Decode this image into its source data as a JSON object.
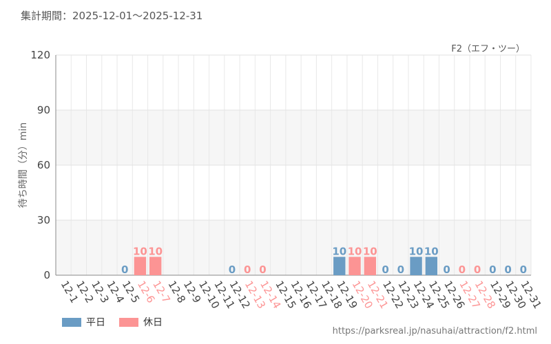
{
  "header": {
    "period": "集計期間：2025-12-01～2025-12-31"
  },
  "source_url": "https://parksreal.jp/nasuhai/attraction/f2.html",
  "colors": {
    "weekday": "#6a9cc4",
    "holiday": "#fc9494"
  },
  "chart_data": {
    "type": "bar",
    "title": "F2（エフ・ツー）",
    "xlabel": "",
    "ylabel": "待ち時間（分）min",
    "ylim": [
      0,
      120
    ],
    "yticks": [
      0,
      30,
      60,
      90,
      120
    ],
    "categories": [
      "12-1",
      "12-2",
      "12-3",
      "12-4",
      "12-5",
      "12-6",
      "12-7",
      "12-8",
      "12-9",
      "12-10",
      "12-11",
      "12-12",
      "12-13",
      "12-14",
      "12-15",
      "12-16",
      "12-17",
      "12-18",
      "12-19",
      "12-20",
      "12-21",
      "12-22",
      "12-23",
      "12-24",
      "12-25",
      "12-26",
      "12-27",
      "12-28",
      "12-29",
      "12-30",
      "12-31"
    ],
    "values": [
      null,
      null,
      null,
      null,
      0,
      10,
      10,
      null,
      null,
      null,
      null,
      0,
      0,
      0,
      null,
      null,
      null,
      null,
      10,
      10,
      10,
      0,
      0,
      10,
      10,
      0,
      0,
      0,
      0,
      0,
      0
    ],
    "day_type": [
      "weekday",
      "weekday",
      "weekday",
      "weekday",
      "weekday",
      "holiday",
      "holiday",
      "weekday",
      "weekday",
      "weekday",
      "weekday",
      "weekday",
      "holiday",
      "holiday",
      "weekday",
      "weekday",
      "weekday",
      "weekday",
      "weekday",
      "holiday",
      "holiday",
      "weekday",
      "weekday",
      "weekday",
      "weekday",
      "weekday",
      "holiday",
      "holiday",
      "weekday",
      "weekday",
      "weekday"
    ],
    "legend": {
      "placement": "bottom-left",
      "entries": [
        {
          "label": "平日",
          "type": "weekday"
        },
        {
          "label": "休日",
          "type": "holiday"
        }
      ]
    }
  }
}
